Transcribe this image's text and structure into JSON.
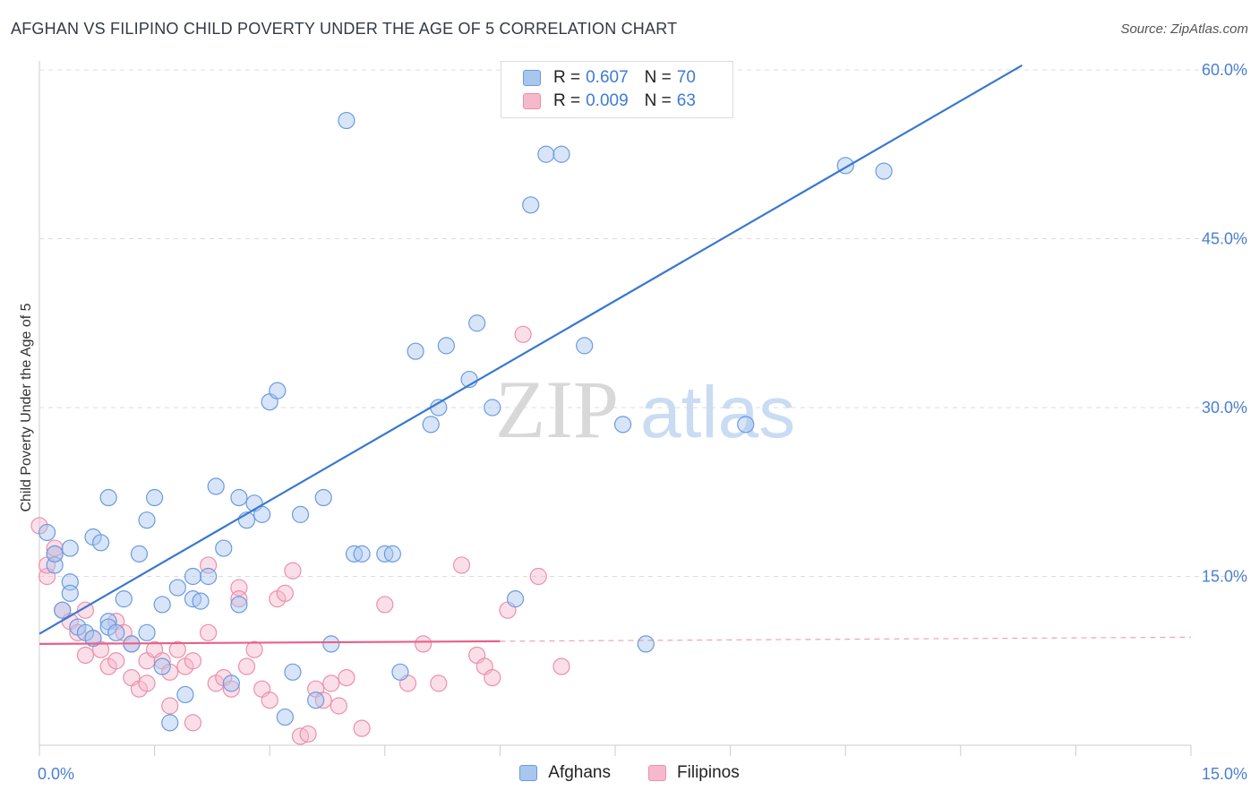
{
  "title": "AFGHAN VS FILIPINO CHILD POVERTY UNDER THE AGE OF 5 CORRELATION CHART",
  "source": "Source: ZipAtlas.com",
  "watermark": {
    "zip": "ZIP",
    "atlas": "atlas"
  },
  "legend": {
    "rows": [
      {
        "r_label": "R =",
        "r_value": "0.607",
        "n_label": "N =",
        "n_value": "70"
      },
      {
        "r_label": "R =",
        "r_value": "0.009",
        "n_label": "N =",
        "n_value": "63"
      }
    ]
  },
  "bottom_legend": {
    "afghans": "Afghans",
    "filipinos": "Filipinos"
  },
  "colors": {
    "afghan_fill": "#a9c6ef",
    "afghan_stroke": "#6a9be0",
    "afghan_line": "#3a78d0",
    "filipino_fill": "#f6b9cc",
    "filipino_stroke": "#ec8fab",
    "filipino_line": "#e8608a",
    "tick": "#4a7fd0",
    "grid": "#dddddd"
  },
  "chart_data": {
    "type": "scatter",
    "title": "AFGHAN VS FILIPINO CHILD POVERTY UNDER THE AGE OF 5 CORRELATION CHART",
    "xlabel": "",
    "ylabel": "Child Poverty Under the Age of 5",
    "xlim": [
      0,
      15
    ],
    "ylim": [
      0,
      60
    ],
    "x_tick_labels": [
      "0.0%",
      "15.0%"
    ],
    "y_ticks": [
      {
        "value": 15,
        "label": "15.0%"
      },
      {
        "value": 30,
        "label": "30.0%"
      },
      {
        "value": 45,
        "label": "45.0%"
      },
      {
        "value": 60,
        "label": "60.0%"
      }
    ],
    "series": [
      {
        "name": "Afghans",
        "r": 0.607,
        "n": 70,
        "trend": {
          "x": [
            0,
            12.8
          ],
          "y": [
            9.9,
            60.4
          ],
          "style": "solid"
        },
        "points": [
          [
            0.1,
            18.9
          ],
          [
            0.2,
            16.0
          ],
          [
            0.2,
            17.0
          ],
          [
            0.3,
            12.0
          ],
          [
            0.4,
            14.5
          ],
          [
            0.4,
            17.5
          ],
          [
            0.4,
            13.5
          ],
          [
            0.5,
            10.5
          ],
          [
            0.6,
            10.0
          ],
          [
            0.7,
            9.5
          ],
          [
            0.7,
            18.5
          ],
          [
            0.8,
            18.0
          ],
          [
            0.9,
            22.0
          ],
          [
            0.9,
            11.0
          ],
          [
            0.9,
            10.5
          ],
          [
            1.0,
            10.0
          ],
          [
            1.1,
            13.0
          ],
          [
            1.2,
            9.0
          ],
          [
            1.3,
            17.0
          ],
          [
            1.4,
            10.0
          ],
          [
            1.4,
            20.0
          ],
          [
            1.5,
            22.0
          ],
          [
            1.6,
            12.5
          ],
          [
            1.6,
            7.0
          ],
          [
            1.7,
            2.0
          ],
          [
            1.8,
            14.0
          ],
          [
            1.9,
            4.5
          ],
          [
            2.0,
            15.0
          ],
          [
            2.0,
            13.0
          ],
          [
            2.1,
            12.8
          ],
          [
            2.2,
            15.0
          ],
          [
            2.3,
            23.0
          ],
          [
            2.4,
            17.5
          ],
          [
            2.5,
            5.5
          ],
          [
            2.6,
            22.0
          ],
          [
            2.6,
            12.5
          ],
          [
            2.7,
            20.0
          ],
          [
            2.8,
            21.5
          ],
          [
            2.9,
            20.5
          ],
          [
            3.0,
            30.5
          ],
          [
            3.1,
            31.5
          ],
          [
            3.2,
            2.5
          ],
          [
            3.3,
            6.5
          ],
          [
            3.4,
            20.5
          ],
          [
            3.6,
            4.0
          ],
          [
            3.7,
            22.0
          ],
          [
            3.8,
            9.0
          ],
          [
            4.0,
            55.5
          ],
          [
            4.1,
            17.0
          ],
          [
            4.2,
            17.0
          ],
          [
            4.5,
            17.0
          ],
          [
            4.6,
            17.0
          ],
          [
            4.7,
            6.5
          ],
          [
            4.9,
            35.0
          ],
          [
            5.1,
            28.5
          ],
          [
            5.2,
            30.0
          ],
          [
            5.3,
            35.5
          ],
          [
            5.6,
            32.5
          ],
          [
            5.7,
            37.5
          ],
          [
            5.9,
            30.0
          ],
          [
            6.2,
            13.0
          ],
          [
            6.4,
            48.0
          ],
          [
            6.6,
            52.5
          ],
          [
            6.8,
            52.5
          ],
          [
            7.1,
            35.5
          ],
          [
            7.6,
            28.5
          ],
          [
            7.9,
            9.0
          ],
          [
            9.2,
            28.5
          ],
          [
            10.5,
            51.5
          ],
          [
            11.0,
            51.0
          ]
        ]
      },
      {
        "name": "Filipinos",
        "r": 0.009,
        "n": 63,
        "trend": {
          "x": [
            0,
            15
          ],
          "y": [
            9.0,
            9.6
          ],
          "solid_until_x": 6.0
        },
        "points": [
          [
            0.0,
            19.5
          ],
          [
            0.1,
            15.0
          ],
          [
            0.2,
            17.0
          ],
          [
            0.3,
            12.0
          ],
          [
            0.4,
            11.0
          ],
          [
            0.5,
            10.0
          ],
          [
            0.6,
            12.0
          ],
          [
            0.6,
            8.0
          ],
          [
            0.7,
            9.5
          ],
          [
            0.8,
            8.5
          ],
          [
            0.9,
            7.0
          ],
          [
            1.0,
            7.5
          ],
          [
            1.0,
            11.0
          ],
          [
            1.1,
            10.0
          ],
          [
            1.2,
            9.0
          ],
          [
            1.2,
            6.0
          ],
          [
            1.3,
            5.0
          ],
          [
            1.4,
            7.5
          ],
          [
            1.4,
            5.5
          ],
          [
            1.5,
            8.5
          ],
          [
            1.6,
            7.5
          ],
          [
            1.7,
            6.5
          ],
          [
            1.7,
            3.5
          ],
          [
            1.8,
            8.5
          ],
          [
            1.9,
            7.0
          ],
          [
            2.0,
            7.5
          ],
          [
            2.0,
            2.0
          ],
          [
            2.2,
            10.0
          ],
          [
            2.2,
            16.0
          ],
          [
            2.3,
            5.5
          ],
          [
            2.4,
            6.0
          ],
          [
            2.5,
            5.0
          ],
          [
            2.6,
            14.0
          ],
          [
            2.6,
            13.0
          ],
          [
            2.7,
            7.0
          ],
          [
            2.8,
            8.5
          ],
          [
            2.9,
            5.0
          ],
          [
            3.0,
            4.0
          ],
          [
            3.1,
            13.0
          ],
          [
            3.2,
            13.5
          ],
          [
            3.3,
            15.5
          ],
          [
            3.4,
            0.8
          ],
          [
            3.5,
            1.0
          ],
          [
            3.6,
            5.0
          ],
          [
            3.7,
            4.0
          ],
          [
            3.8,
            5.5
          ],
          [
            3.9,
            3.5
          ],
          [
            4.0,
            6.0
          ],
          [
            4.2,
            1.5
          ],
          [
            4.5,
            12.5
          ],
          [
            4.8,
            5.5
          ],
          [
            5.0,
            9.0
          ],
          [
            5.2,
            5.5
          ],
          [
            5.5,
            16.0
          ],
          [
            5.7,
            8.0
          ],
          [
            5.8,
            7.0
          ],
          [
            5.9,
            6.0
          ],
          [
            6.1,
            12.0
          ],
          [
            6.3,
            36.5
          ],
          [
            6.5,
            15.0
          ],
          [
            6.8,
            7.0
          ],
          [
            0.2,
            17.5
          ],
          [
            0.1,
            16.0
          ]
        ]
      }
    ]
  }
}
